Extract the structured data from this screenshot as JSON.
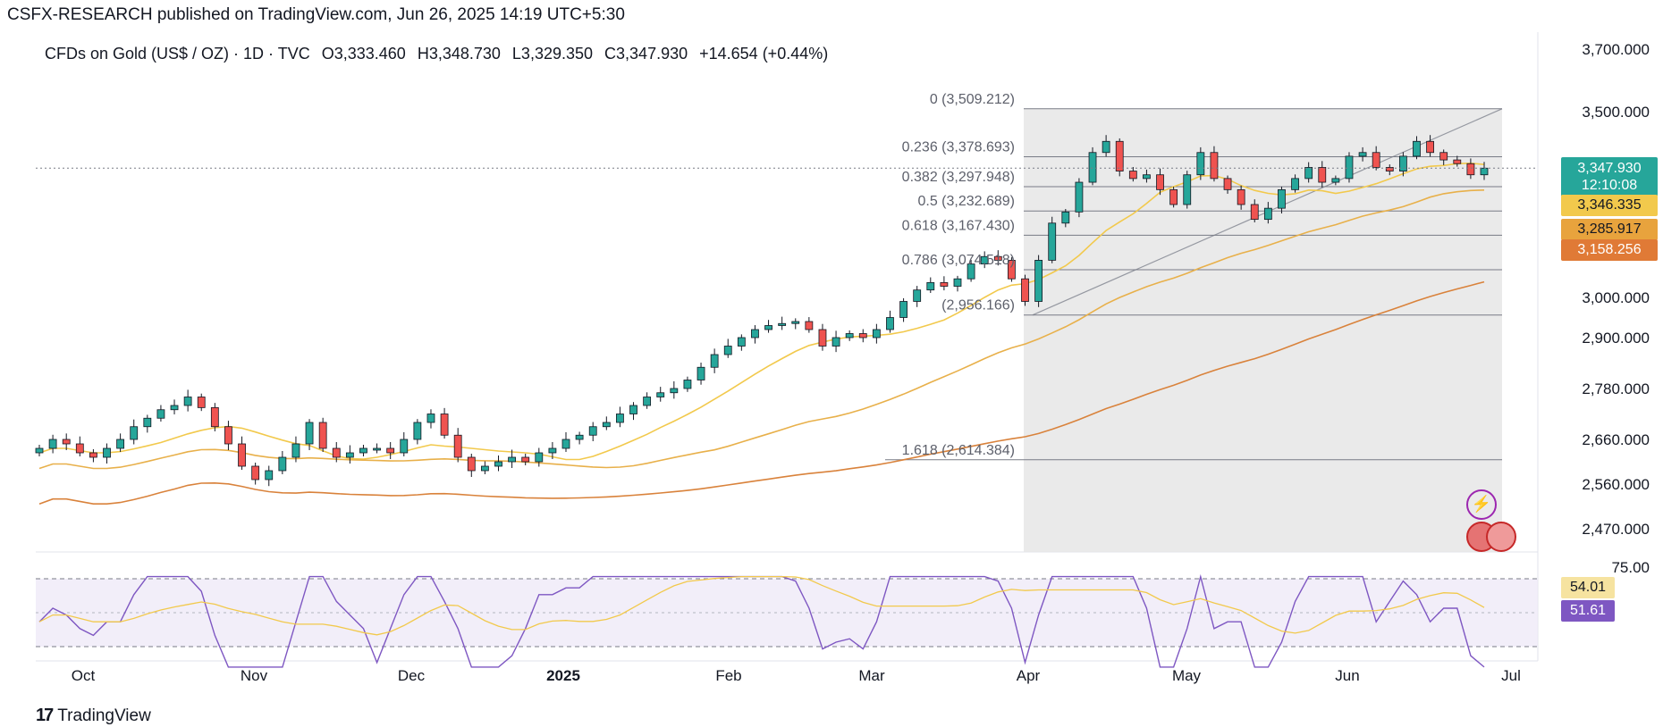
{
  "header": {
    "published": "CSFX-RESEARCH published on TradingView.com, Jun 26, 2025 14:19 UTC+5:30"
  },
  "legend": {
    "symbol": "CFDs on Gold (US$ / OZ) · 1D · TVC",
    "open": "O3,333.460",
    "high": "H3,348.730",
    "low": "L3,329.350",
    "close": "C3,347.930",
    "change": "+14.654 (+0.44%)"
  },
  "footer": {
    "brand": "TradingView"
  },
  "tags": {
    "last_price": "3,347.930",
    "countdown": "12:10:08",
    "ma_fast": "3,346.335",
    "ma_mid": "3,285.917",
    "ma_slow": "3,158.256",
    "rsi_ma": "54.01",
    "rsi": "51.61"
  },
  "colors": {
    "up": "#26a69a",
    "down": "#ef5350",
    "ma_fast": "#f2c94c",
    "ma_mid": "#e8b04a",
    "ma_slow": "#d9823b",
    "rsi": "#7e57c2",
    "fib_zone": "#e6e6e6"
  },
  "chart_data": {
    "type": "candlestick",
    "title": "CFDs on Gold (US$ / OZ) · 1D · TVC",
    "x_ticks": [
      "Oct",
      "Nov",
      "Dec",
      "2025",
      "Feb",
      "Mar",
      "Apr",
      "May",
      "Jun",
      "Jul"
    ],
    "y_ticks": [
      "3,700.000",
      "3,500.000",
      "3,000.000",
      "2,900.000",
      "2,780.000",
      "2,660.000",
      "2,560.000",
      "2,470.000"
    ],
    "y_tick_values": [
      3700,
      3500,
      3000,
      2900,
      2780,
      2660,
      2560,
      2470
    ],
    "fib_levels": [
      {
        "ratio": "0",
        "value": "3,509.212",
        "price": 3509.212
      },
      {
        "ratio": "0.236",
        "value": "3,378.693",
        "price": 3378.693
      },
      {
        "ratio": "0.382",
        "value": "3,297.948",
        "price": 3297.948
      },
      {
        "ratio": "0.5",
        "value": "3,232.689",
        "price": 3232.689
      },
      {
        "ratio": "0.618",
        "value": "3,167.430",
        "price": 3167.43
      },
      {
        "ratio": "0.786",
        "value": "3,074.518",
        "price": 3074.518
      },
      {
        "ratio": "1",
        "value": "2,956.166",
        "price": 2956.166
      },
      {
        "ratio": "1.618",
        "value": "2,614.384",
        "price": 2614.384
      }
    ],
    "rsi_ticks": [
      "75.00"
    ],
    "close_series_approx": [
      2640,
      2660,
      2650,
      2630,
      2620,
      2640,
      2660,
      2690,
      2710,
      2730,
      2740,
      2760,
      2735,
      2690,
      2650,
      2600,
      2570,
      2590,
      2620,
      2650,
      2700,
      2640,
      2620,
      2630,
      2640,
      2640,
      2630,
      2660,
      2700,
      2720,
      2670,
      2620,
      2590,
      2600,
      2610,
      2620,
      2610,
      2630,
      2640,
      2660,
      2670,
      2690,
      2700,
      2720,
      2740,
      2760,
      2770,
      2780,
      2800,
      2830,
      2860,
      2880,
      2900,
      2920,
      2930,
      2935,
      2940,
      2920,
      2880,
      2900,
      2910,
      2900,
      2920,
      2950,
      2990,
      3020,
      3040,
      3030,
      3050,
      3090,
      3110,
      3100,
      3050,
      2990,
      3100,
      3200,
      3230,
      3310,
      3390,
      3420,
      3340,
      3320,
      3330,
      3290,
      3250,
      3330,
      3390,
      3320,
      3290,
      3250,
      3210,
      3240,
      3290,
      3320,
      3350,
      3310,
      3320,
      3380,
      3390,
      3350,
      3340,
      3380,
      3420,
      3390,
      3370,
      3360,
      3330,
      3347.93
    ]
  }
}
